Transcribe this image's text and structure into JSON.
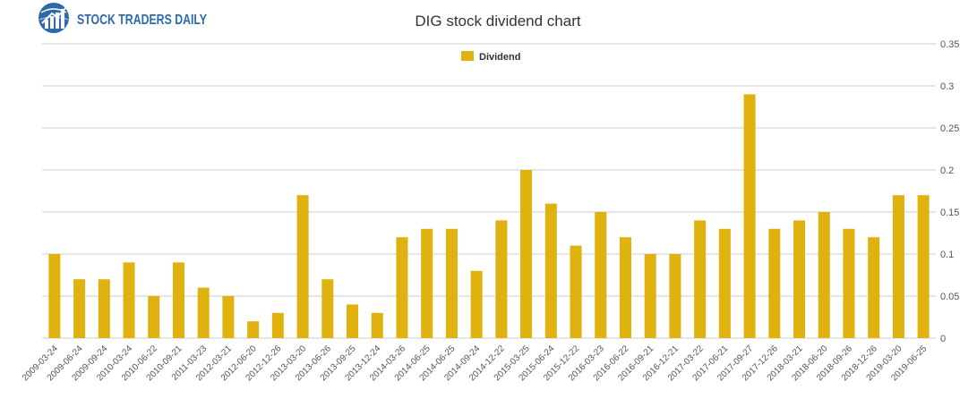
{
  "brand": {
    "name": "STOCK TRADERS DAILY",
    "icon": "globe-chart-icon",
    "color": "#2e6aa8"
  },
  "chart_data": {
    "type": "bar",
    "title": "DIG stock dividend chart",
    "xlabel": "",
    "ylabel": "",
    "ylim": [
      0,
      0.35
    ],
    "yticks": [
      0,
      0.05,
      0.1,
      0.15,
      0.2,
      0.25,
      0.3,
      0.35
    ],
    "grid": true,
    "legend_position": "top-center",
    "color": "#e0b20f",
    "categories": [
      "2009-03-24",
      "2009-06-24",
      "2009-09-24",
      "2010-03-24",
      "2010-06-22",
      "2010-09-21",
      "2011-03-23",
      "2012-03-21",
      "2012-06-20",
      "2012-12-26",
      "2013-03-20",
      "2013-06-26",
      "2013-09-25",
      "2013-12-24",
      "2014-03-26",
      "2014-06-25",
      "2014-06-25",
      "2014-09-24",
      "2014-12-22",
      "2015-03-25",
      "2015-06-24",
      "2015-12-22",
      "2016-03-23",
      "2016-06-22",
      "2016-09-21",
      "2016-12-21",
      "2017-03-22",
      "2017-06-21",
      "2017-09-27",
      "2017-12-26",
      "2018-03-21",
      "2018-06-20",
      "2018-09-26",
      "2018-12-26",
      "2019-03-20",
      "2019-06-25"
    ],
    "series": [
      {
        "name": "Dividend",
        "values": [
          0.1,
          0.07,
          0.07,
          0.09,
          0.05,
          0.09,
          0.06,
          0.05,
          0.02,
          0.03,
          0.17,
          0.07,
          0.04,
          0.03,
          0.12,
          0.13,
          0.13,
          0.08,
          0.14,
          0.2,
          0.16,
          0.11,
          0.15,
          0.12,
          0.1,
          0.1,
          0.14,
          0.13,
          0.29,
          0.13,
          0.14,
          0.15,
          0.13,
          0.12,
          0.17,
          0.17
        ]
      }
    ]
  }
}
